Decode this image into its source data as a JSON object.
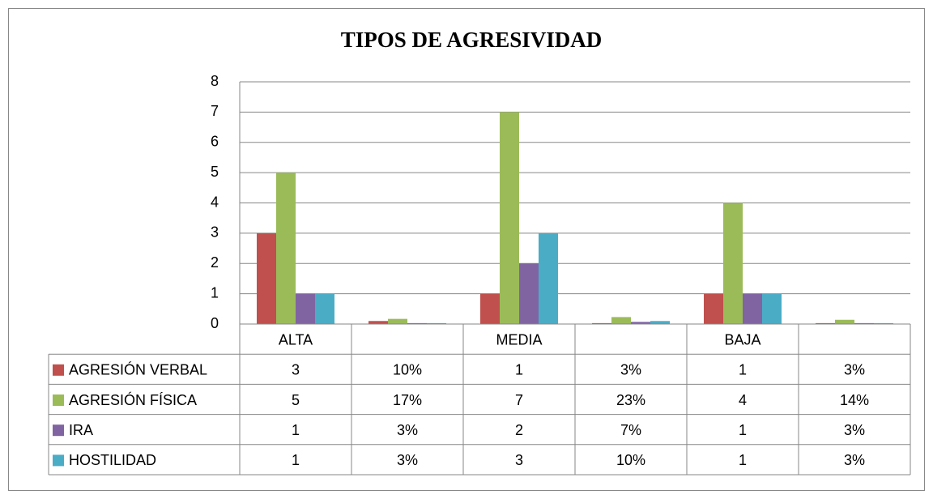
{
  "chart_data": {
    "type": "bar",
    "title": "TIPOS DE AGRESIVIDAD",
    "categories": [
      "ALTA",
      null,
      "MEDIA",
      null,
      "BAJA",
      null
    ],
    "series": [
      {
        "name": "AGRESIÓN VERBAL",
        "color": "#c0504d",
        "values": [
          3,
          0.1,
          1,
          0.03,
          1,
          0.03
        ],
        "value_labels": [
          "3",
          "10%",
          "1",
          "3%",
          "1",
          "3%"
        ]
      },
      {
        "name": "AGRESIÓN FÍSICA",
        "color": "#9bbb59",
        "values": [
          5,
          0.17,
          7,
          0.23,
          4,
          0.14
        ],
        "value_labels": [
          "5",
          "17%",
          "7",
          "23%",
          "4",
          "14%"
        ]
      },
      {
        "name": "IRA",
        "color": "#8064a2",
        "values": [
          1,
          0.03,
          2,
          0.07,
          1,
          0.03
        ],
        "value_labels": [
          "1",
          "3%",
          "2",
          "7%",
          "1",
          "3%"
        ]
      },
      {
        "name": "HOSTILIDAD",
        "color": "#4bacc6",
        "values": [
          1,
          0.03,
          3,
          0.1,
          1,
          0.03
        ],
        "value_labels": [
          "1",
          "3%",
          "3",
          "10%",
          "1",
          "3%"
        ]
      }
    ],
    "ylim": [
      0,
      8
    ],
    "yticks": [
      0,
      1,
      2,
      3,
      4,
      5,
      6,
      7,
      8
    ],
    "grid": true
  }
}
